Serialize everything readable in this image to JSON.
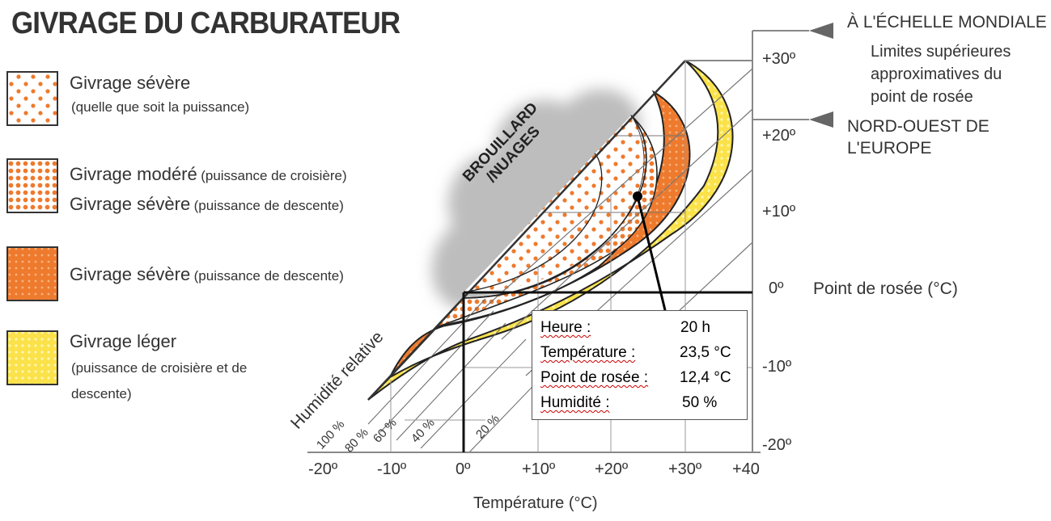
{
  "title": "GIVRAGE DU CARBURATEUR",
  "legend": [
    {
      "line1": "Givrage sévère",
      "sub": "(quelle que  soit la puissance)"
    },
    {
      "line1": "Givrage modéré",
      "line1_sub": "(puissance de croisière)",
      "line2": "Givrage sévère",
      "line2_sub": "(puissance de descente)"
    },
    {
      "line1": "Givrage sévère",
      "line1_sub": "(puissance de descente)"
    },
    {
      "line1": "Givrage léger",
      "sub": "(puissance de croisière et de",
      "sub2": "descente)"
    }
  ],
  "labels": {
    "fog": "BROUILLARD",
    "clouds": "/NUAGES",
    "humidity": "Humidité relative",
    "rh_100": "100 %",
    "rh_80": "80 %",
    "rh_60": "60 %",
    "rh_40": "40 %",
    "rh_20": "20 %",
    "worldwide": "À L'ÉCHELLE MONDIALE",
    "upper_limits_1": "Limites supérieures",
    "upper_limits_2": "approximatives du",
    "upper_limits_3": "point de rosée",
    "nw_europe_1": "NORD-OUEST DE",
    "nw_europe_2": "L'EUROPE",
    "dew_axis": "Point de rosée (°C)",
    "temp_axis": "Température (°C)"
  },
  "x_ticks": [
    "-20º",
    "-10º",
    "0º",
    "+10º",
    "+20º",
    "+30º",
    "+40"
  ],
  "y_ticks": [
    "+30º",
    "+20º",
    "+10º",
    "0º",
    "-10º",
    "-20º"
  ],
  "info": [
    {
      "key": "Heure :",
      "value": "20 h"
    },
    {
      "key": "Température :",
      "value": "23,5 °C"
    },
    {
      "key": "Point de rosée :",
      "value": "12,4 °C"
    },
    {
      "key": "Humidité :",
      "value": "50 %"
    }
  ],
  "colors": {
    "orange": "#ee7a2e",
    "yellow": "#fbe24a",
    "grid": "#888888",
    "text": "#333333"
  }
}
